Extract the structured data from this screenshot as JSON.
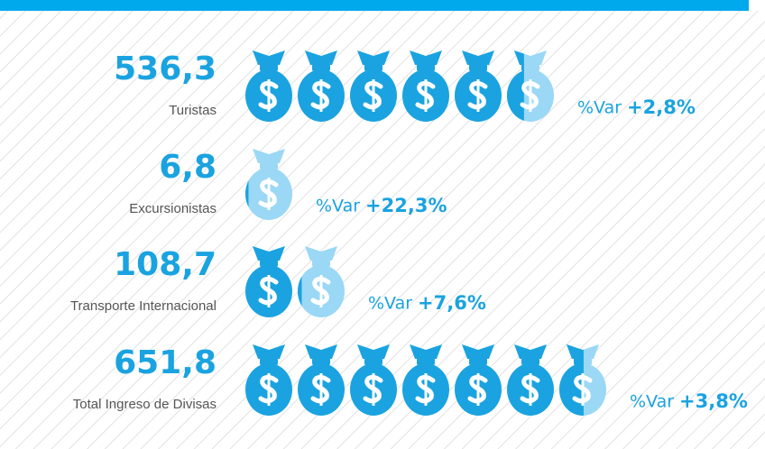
{
  "chart_data": {
    "type": "pictogram",
    "categories": [
      "Turistas",
      "Excursionistas",
      "Transporte Internacional",
      "Total Ingreso de Divisas"
    ],
    "values": [
      536.3,
      6.8,
      108.7,
      651.8
    ],
    "value_labels": [
      "536,3",
      "6,8",
      "108,7",
      "651,8"
    ],
    "change_prefix": "%Var",
    "changes": [
      2.8,
      22.3,
      7.6,
      3.8
    ],
    "change_labels": [
      "+2,8%",
      "+22,3%",
      "+7,6%",
      "+3,8%"
    ],
    "xlim": [
      0,
      700
    ],
    "color": "#1aa3e0",
    "light_color": "#9ad8f5",
    "bar_color": "#00a9ec"
  }
}
